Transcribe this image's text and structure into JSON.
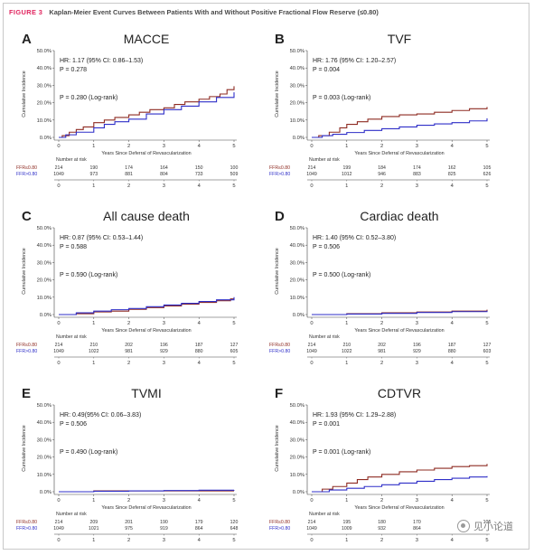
{
  "figure": {
    "label": "FIGURE 3",
    "title": "Kaplan-Meier Event Curves Between Patients With and Without Positive Fractional Flow Reserve (≤0.80)"
  },
  "watermark": {
    "text": "见小论道"
  },
  "colors": {
    "figure_label": "#e0245e",
    "ffr_low": "#8e2b22",
    "ffr_high": "#2f2fc8",
    "axis": "#444444"
  },
  "chart_data": [
    {
      "type": "line",
      "panel": "A",
      "title": "MACCE",
      "stats": [
        "HR: 1.17 (95% CI: 0.86–1.53)",
        "P = 0.278",
        "P = 0.280 (Log-rank)"
      ],
      "ylabel": "Cumulative Incidence",
      "xlabel": "Years Since Deferral of Revascularization",
      "xlim": [
        0,
        5
      ],
      "ylim": [
        0,
        50
      ],
      "yticks": [
        "0.0%",
        "10.0%",
        "20.0%",
        "30.0%",
        "40.0%",
        "50.0%"
      ],
      "xticks": [
        "0",
        "1",
        "2",
        "3",
        "4",
        "5"
      ],
      "series": [
        {
          "name": "FFR≤0.80",
          "x": [
            0,
            0.1,
            0.3,
            0.5,
            0.7,
            1.0,
            1.3,
            1.6,
            2.0,
            2.3,
            2.6,
            3.0,
            3.3,
            3.6,
            4.0,
            4.3,
            4.6,
            4.8,
            5.0
          ],
          "y": [
            0,
            1.0,
            3.0,
            4.5,
            6.0,
            8.5,
            10.0,
            11.5,
            13.0,
            14.5,
            16.0,
            17.0,
            19.0,
            20.5,
            22.0,
            23.5,
            25.0,
            27.5,
            29.5
          ]
        },
        {
          "name": "FFR>0.80",
          "x": [
            0,
            0.2,
            0.5,
            1.0,
            1.3,
            1.6,
            2.0,
            2.5,
            3.0,
            3.5,
            4.0,
            4.5,
            5.0
          ],
          "y": [
            0,
            1.5,
            3.0,
            5.5,
            7.5,
            9.0,
            10.5,
            13.5,
            16.0,
            18.0,
            20.5,
            23.0,
            26.0
          ]
        }
      ],
      "at_risk": {
        "label": "Number at risk",
        "rows": [
          [
            "214",
            "190",
            "174",
            "164",
            "150",
            "100"
          ],
          [
            "1049",
            "973",
            "881",
            "804",
            "733",
            "509"
          ]
        ]
      }
    },
    {
      "type": "line",
      "panel": "B",
      "title": "TVF",
      "stats": [
        "HR: 1.76 (95% CI: 1.20–2.57)",
        "P = 0.004",
        "P = 0.003 (Log-rank)"
      ],
      "ylabel": "Cumulative Incidence",
      "xlabel": "Years Since Deferral of Revascularization",
      "xlim": [
        0,
        5
      ],
      "ylim": [
        0,
        50
      ],
      "yticks": [
        "0.0%",
        "10.0%",
        "20.0%",
        "30.0%",
        "40.0%",
        "50.0%"
      ],
      "xticks": [
        "0",
        "1",
        "2",
        "3",
        "4",
        "5"
      ],
      "series": [
        {
          "name": "FFR≤0.80",
          "x": [
            0,
            0.2,
            0.5,
            0.8,
            1.0,
            1.3,
            1.6,
            2.0,
            2.5,
            3.0,
            3.5,
            4.0,
            4.5,
            5.0
          ],
          "y": [
            0,
            1.0,
            3.0,
            5.5,
            7.5,
            9.0,
            10.5,
            12.0,
            13.0,
            13.5,
            14.5,
            15.5,
            16.5,
            17.5
          ]
        },
        {
          "name": "FFR>0.80",
          "x": [
            0,
            0.3,
            0.6,
            1.0,
            1.5,
            2.0,
            2.5,
            3.0,
            3.5,
            4.0,
            4.5,
            5.0
          ],
          "y": [
            0,
            1.0,
            1.8,
            2.8,
            4.0,
            5.0,
            6.0,
            7.0,
            7.8,
            8.5,
            9.5,
            11.0
          ]
        }
      ],
      "at_risk": {
        "label": "Number at risk",
        "rows": [
          [
            "214",
            "199",
            "184",
            "174",
            "162",
            "105"
          ],
          [
            "1049",
            "1012",
            "946",
            "883",
            "825",
            "626"
          ]
        ]
      }
    },
    {
      "type": "line",
      "panel": "C",
      "title": "All cause death",
      "stats": [
        "HR: 0.87 (95% CI: 0.53–1.44)",
        "P = 0.588",
        "P = 0.590 (Log-rank)"
      ],
      "ylabel": "Cumulative Incidence",
      "xlabel": "Years Since Deferral of Revascularization",
      "xlim": [
        0,
        5
      ],
      "ylim": [
        0,
        50
      ],
      "yticks": [
        "0.0%",
        "10.0%",
        "20.0%",
        "30.0%",
        "40.0%",
        "50.0%"
      ],
      "xticks": [
        "0",
        "1",
        "2",
        "3",
        "4",
        "5"
      ],
      "series": [
        {
          "name": "FFR≤0.80",
          "x": [
            0,
            0.5,
            1.0,
            1.5,
            2.0,
            2.5,
            3.0,
            3.5,
            4.0,
            4.5,
            4.9,
            5.0
          ],
          "y": [
            0,
            0.5,
            1.5,
            2.0,
            3.0,
            4.0,
            5.0,
            6.0,
            7.0,
            8.0,
            9.0,
            9.0
          ]
        },
        {
          "name": "FFR>0.80",
          "x": [
            0,
            0.5,
            1.0,
            1.5,
            2.0,
            2.5,
            3.0,
            3.5,
            4.0,
            4.5,
            5.0
          ],
          "y": [
            0,
            1.0,
            2.0,
            2.8,
            3.5,
            4.5,
            5.5,
            6.5,
            7.5,
            8.5,
            10.0
          ]
        }
      ],
      "at_risk": {
        "label": "Number at risk",
        "rows": [
          [
            "214",
            "210",
            "202",
            "196",
            "187",
            "127"
          ],
          [
            "1049",
            "1022",
            "981",
            "929",
            "880",
            "605"
          ]
        ]
      }
    },
    {
      "type": "line",
      "panel": "D",
      "title": "Cardiac death",
      "stats": [
        "HR: 1.40 (95% CI: 0.52–3.80)",
        "P = 0.506",
        "P = 0.500 (Log-rank)"
      ],
      "ylabel": "Cumulative Incidence",
      "xlabel": "Years Since Deferral of Revascularization",
      "xlim": [
        0,
        5
      ],
      "ylim": [
        0,
        50
      ],
      "yticks": [
        "0.0%",
        "10.0%",
        "20.0%",
        "30.0%",
        "40.0%",
        "50.0%"
      ],
      "xticks": [
        "0",
        "1",
        "2",
        "3",
        "4",
        "5"
      ],
      "series": [
        {
          "name": "FFR≤0.80",
          "x": [
            0,
            1,
            2,
            3,
            4,
            5
          ],
          "y": [
            0,
            0.5,
            1.0,
            1.5,
            2.0,
            2.8
          ]
        },
        {
          "name": "FFR>0.80",
          "x": [
            0,
            1,
            2,
            3,
            4,
            5
          ],
          "y": [
            0,
            0.3,
            0.7,
            1.2,
            1.7,
            2.2
          ]
        }
      ],
      "at_risk": {
        "label": "Number at risk",
        "rows": [
          [
            "214",
            "210",
            "202",
            "196",
            "187",
            "127"
          ],
          [
            "1049",
            "1022",
            "981",
            "929",
            "880",
            "603"
          ]
        ]
      }
    },
    {
      "type": "line",
      "panel": "E",
      "title": "TVMI",
      "stats": [
        "HR: 0.49(95% CI: 0.06–3.83)",
        "P = 0.506",
        "P = 0.490 (Log-rank)"
      ],
      "ylabel": "Cumulative Incidence",
      "xlabel": "Years Since Deferral of Revascularization",
      "xlim": [
        0,
        5
      ],
      "ylim": [
        0,
        50
      ],
      "yticks": [
        "0.0%",
        "10.0%",
        "20.0%",
        "30.0%",
        "40.0%",
        "50.0%"
      ],
      "xticks": [
        "0",
        "1",
        "2",
        "3",
        "4",
        "5"
      ],
      "series": [
        {
          "name": "FFR≤0.80",
          "x": [
            0,
            1,
            2,
            3,
            4,
            5
          ],
          "y": [
            0,
            0.5,
            0.5,
            0.5,
            0.5,
            0.5
          ]
        },
        {
          "name": "FFR>0.80",
          "x": [
            0,
            1,
            2,
            3,
            4,
            5
          ],
          "y": [
            0,
            0.3,
            0.5,
            0.7,
            0.9,
            1.0
          ]
        }
      ],
      "at_risk": {
        "label": "Number at risk",
        "rows": [
          [
            "214",
            "209",
            "201",
            "190",
            "179",
            "120"
          ],
          [
            "1049",
            "1021",
            "975",
            "919",
            "864",
            "648"
          ]
        ]
      }
    },
    {
      "type": "line",
      "panel": "F",
      "title": "CDTVR",
      "stats": [
        "HR: 1.93 (95% CI: 1.29–2.88)",
        "P = 0.001",
        "P = 0.001 (Log-rank)"
      ],
      "ylabel": "Cumulative Incidence",
      "xlabel": "Years Since Deferral of Revascularization",
      "xlim": [
        0,
        5
      ],
      "ylim": [
        0,
        50
      ],
      "yticks": [
        "0.0%",
        "10.0%",
        "20.0%",
        "30.0%",
        "40.0%",
        "50.0%"
      ],
      "xticks": [
        "0",
        "1",
        "2",
        "3",
        "4",
        "5"
      ],
      "series": [
        {
          "name": "FFR≤0.80",
          "x": [
            0,
            0.3,
            0.6,
            1.0,
            1.3,
            1.6,
            2.0,
            2.5,
            3.0,
            3.5,
            4.0,
            4.5,
            5.0
          ],
          "y": [
            0,
            1.5,
            3.0,
            5.0,
            7.0,
            8.5,
            10.0,
            11.5,
            12.5,
            13.5,
            14.5,
            15.0,
            16.0
          ]
        },
        {
          "name": "FFR>0.80",
          "x": [
            0,
            0.5,
            1.0,
            1.5,
            2.0,
            2.5,
            3.0,
            3.5,
            4.0,
            4.5,
            5.0
          ],
          "y": [
            0,
            1.0,
            2.0,
            3.0,
            4.0,
            5.0,
            6.0,
            7.0,
            7.8,
            8.5,
            9.0
          ]
        }
      ],
      "at_risk": {
        "label": "Number at risk",
        "rows": [
          [
            "214",
            "195",
            "180",
            "170",
            "",
            "105"
          ],
          [
            "1049",
            "1009",
            "932",
            "864",
            "",
            ""
          ]
        ]
      }
    }
  ]
}
